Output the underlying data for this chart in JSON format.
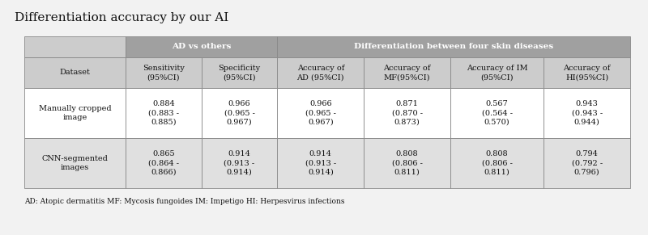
{
  "title": "Differentiation accuracy by our AI",
  "footnote": "AD: Atopic dermatitis MF: Mycosis fungoides IM: Impetigo HI: Herpesvirus infections",
  "header_row2": [
    "Dataset",
    "Sensitivity\n(95%CI)",
    "Specificity\n(95%CI)",
    "Accuracy of\nAD (95%CI)",
    "Accuracy of\nMF(95%CI)",
    "Accuracy of IM\n(95%CI)",
    "Accuracy of\nHI(95%CI)"
  ],
  "rows": [
    [
      "Manually cropped\nimage",
      "0.884\n(0.883 -\n0.885)",
      "0.966\n(0.965 -\n0.967)",
      "0.966\n(0.965 -\n0.967)",
      "0.871\n(0.870 -\n0.873)",
      "0.567\n(0.564 -\n0.570)",
      "0.943\n(0.943 -\n0.944)"
    ],
    [
      "CNN-segmented\nimages",
      "0.865\n(0.864 -\n0.866)",
      "0.914\n(0.913 -\n0.914)",
      "0.914\n(0.913 -\n0.914)",
      "0.808\n(0.806 -\n0.811)",
      "0.808\n(0.806 -\n0.811)",
      "0.794\n(0.792 -\n0.796)"
    ]
  ],
  "header_bg": "#a0a0a0",
  "subheader_bg": "#cccccc",
  "row_bg_odd": "#ffffff",
  "row_bg_even": "#e0e0e0",
  "border_color": "#888888",
  "text_color": "#111111",
  "header_text_color": "#ffffff",
  "title_fontsize": 11,
  "cell_fontsize": 7,
  "header_fontsize": 7.5,
  "footnote_fontsize": 6.5,
  "background_color": "#f2f2f2"
}
